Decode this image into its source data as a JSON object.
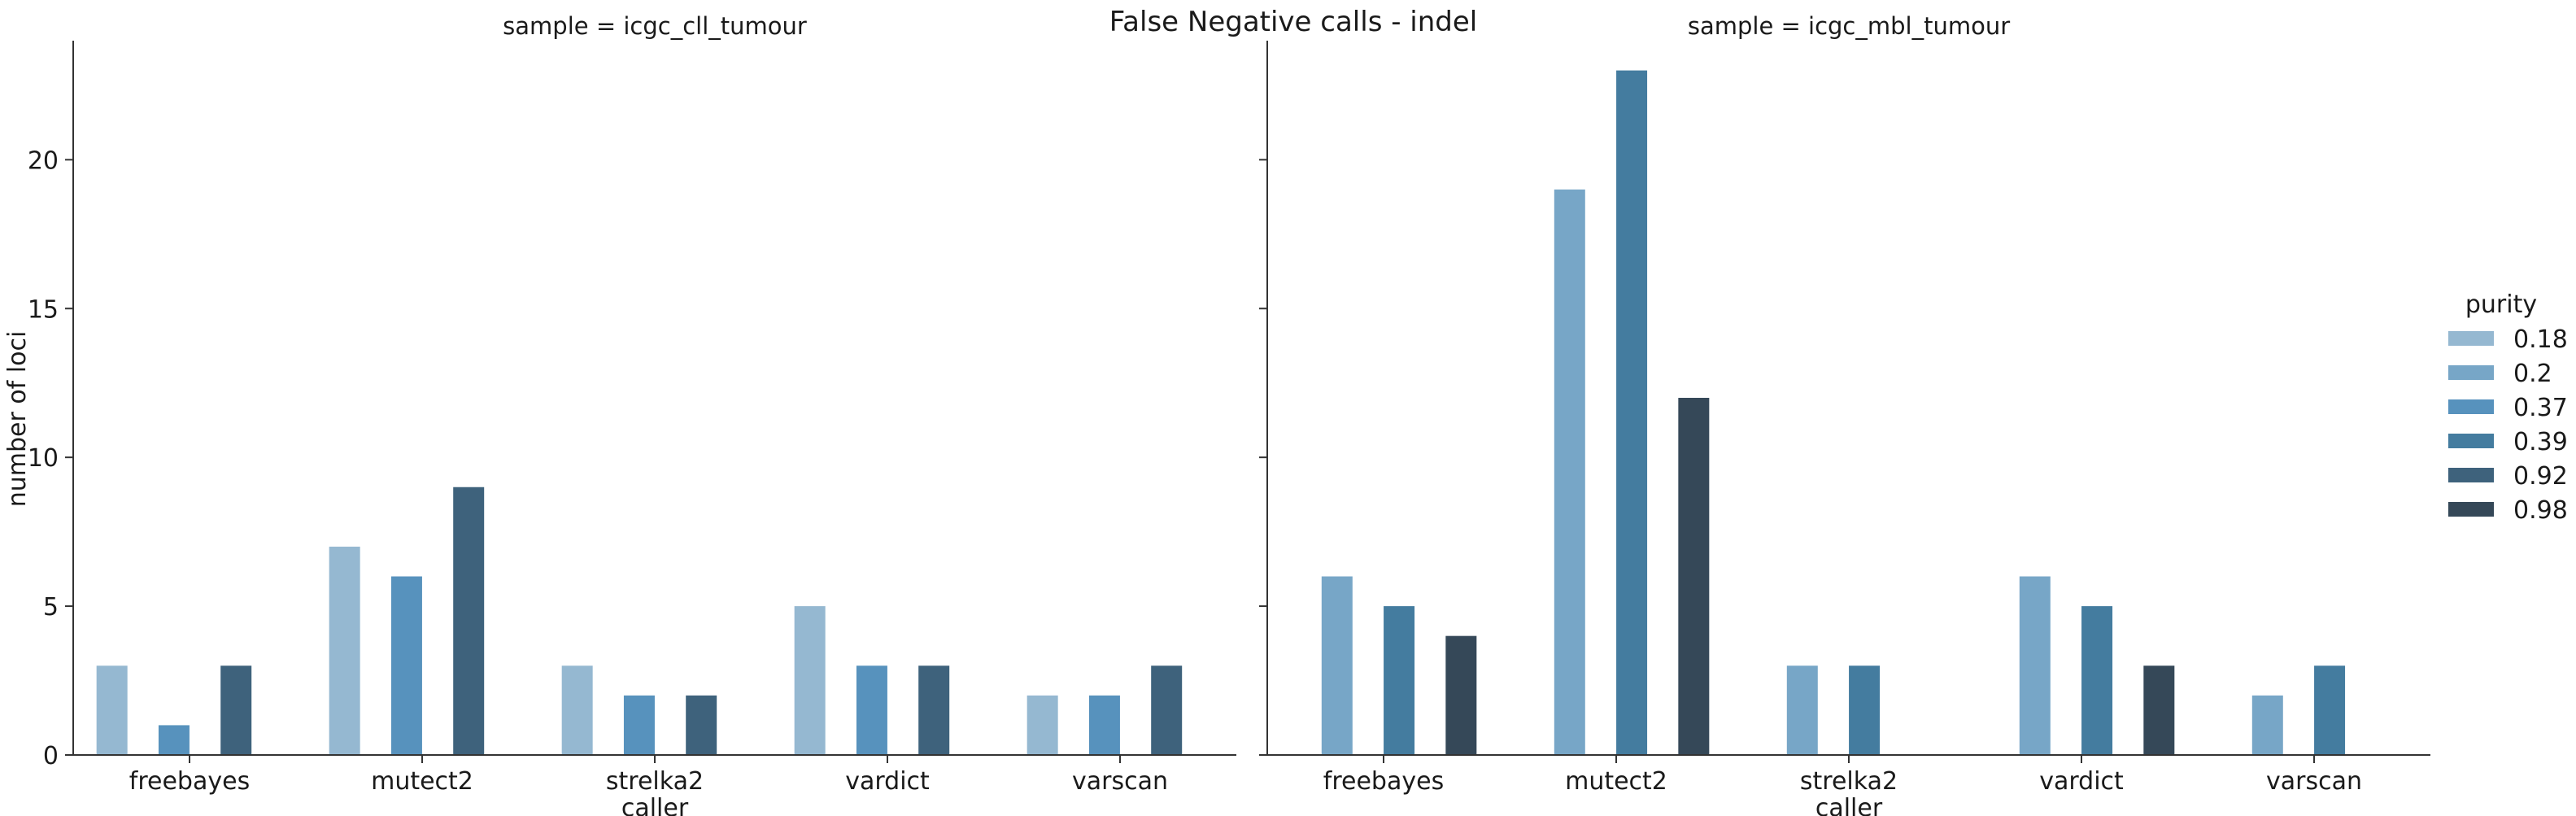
{
  "title": "False Negative calls - indel",
  "chart_data": {
    "type": "bar",
    "title": "False Negative calls - indel",
    "ylabel": "number of loci",
    "xlabel": "caller",
    "ylim": [
      0,
      24
    ],
    "yticks": [
      0,
      5,
      10,
      15,
      20
    ],
    "categories": [
      "freebayes",
      "mutect2",
      "strelka2",
      "vardict",
      "varscan"
    ],
    "legend": {
      "title": "purity",
      "placement": "right",
      "entries": [
        {
          "label": "0.18",
          "color": "#95b8d1"
        },
        {
          "label": "0.2",
          "color": "#77a6c7"
        },
        {
          "label": "0.37",
          "color": "#5792bd"
        },
        {
          "label": "0.39",
          "color": "#447c9f"
        },
        {
          "label": "0.92",
          "color": "#3e627c"
        },
        {
          "label": "0.98",
          "color": "#354858"
        }
      ]
    },
    "panels": [
      {
        "title": "sample = icgc_cll_tumour",
        "series": [
          {
            "name": "0.18",
            "values": [
              3,
              7,
              3,
              5,
              2
            ]
          },
          {
            "name": "0.2",
            "values": [
              null,
              null,
              null,
              null,
              null
            ]
          },
          {
            "name": "0.37",
            "values": [
              1,
              6,
              2,
              3,
              2
            ]
          },
          {
            "name": "0.39",
            "values": [
              null,
              null,
              null,
              null,
              null
            ]
          },
          {
            "name": "0.92",
            "values": [
              3,
              9,
              2,
              3,
              3
            ]
          },
          {
            "name": "0.98",
            "values": [
              null,
              null,
              null,
              null,
              null
            ]
          }
        ]
      },
      {
        "title": "sample = icgc_mbl_tumour",
        "series": [
          {
            "name": "0.18",
            "values": [
              null,
              null,
              null,
              null,
              null
            ]
          },
          {
            "name": "0.2",
            "values": [
              6,
              19,
              3,
              6,
              2
            ]
          },
          {
            "name": "0.37",
            "values": [
              null,
              null,
              null,
              null,
              null
            ]
          },
          {
            "name": "0.39",
            "values": [
              5,
              23,
              3,
              5,
              3
            ]
          },
          {
            "name": "0.92",
            "values": [
              null,
              null,
              null,
              null,
              null
            ]
          },
          {
            "name": "0.98",
            "values": [
              4,
              12,
              null,
              3,
              null
            ]
          }
        ]
      }
    ]
  }
}
